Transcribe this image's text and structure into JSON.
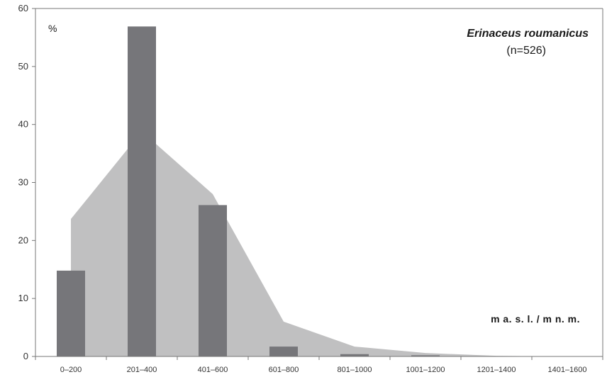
{
  "chart_data": {
    "type": "bar",
    "title": "Erinaceus roumanicus",
    "subtitle": "(n=526)",
    "ylabel": "%",
    "xlabel": "m a. s. l. / m n. m.",
    "categories": [
      "0–200",
      "201–400",
      "401–600",
      "601–800",
      "801–1000",
      "1001–1200",
      "1201–1400",
      "1401–1600"
    ],
    "ylim": [
      0,
      60
    ],
    "yticks": [
      0,
      10,
      20,
      30,
      40,
      50,
      60
    ],
    "series": [
      {
        "values": [
          14.8,
          56.9,
          26.1,
          1.7,
          0.4,
          0.2,
          0,
          0
        ]
      },
      {
        "values": [
          23.7,
          38.8,
          28.0,
          6.0,
          1.7,
          0.6,
          0.1,
          0
        ]
      }
    ],
    "colors": {
      "bars": "#76767a",
      "area": "#c0c0c1",
      "axis": "#777777"
    }
  }
}
